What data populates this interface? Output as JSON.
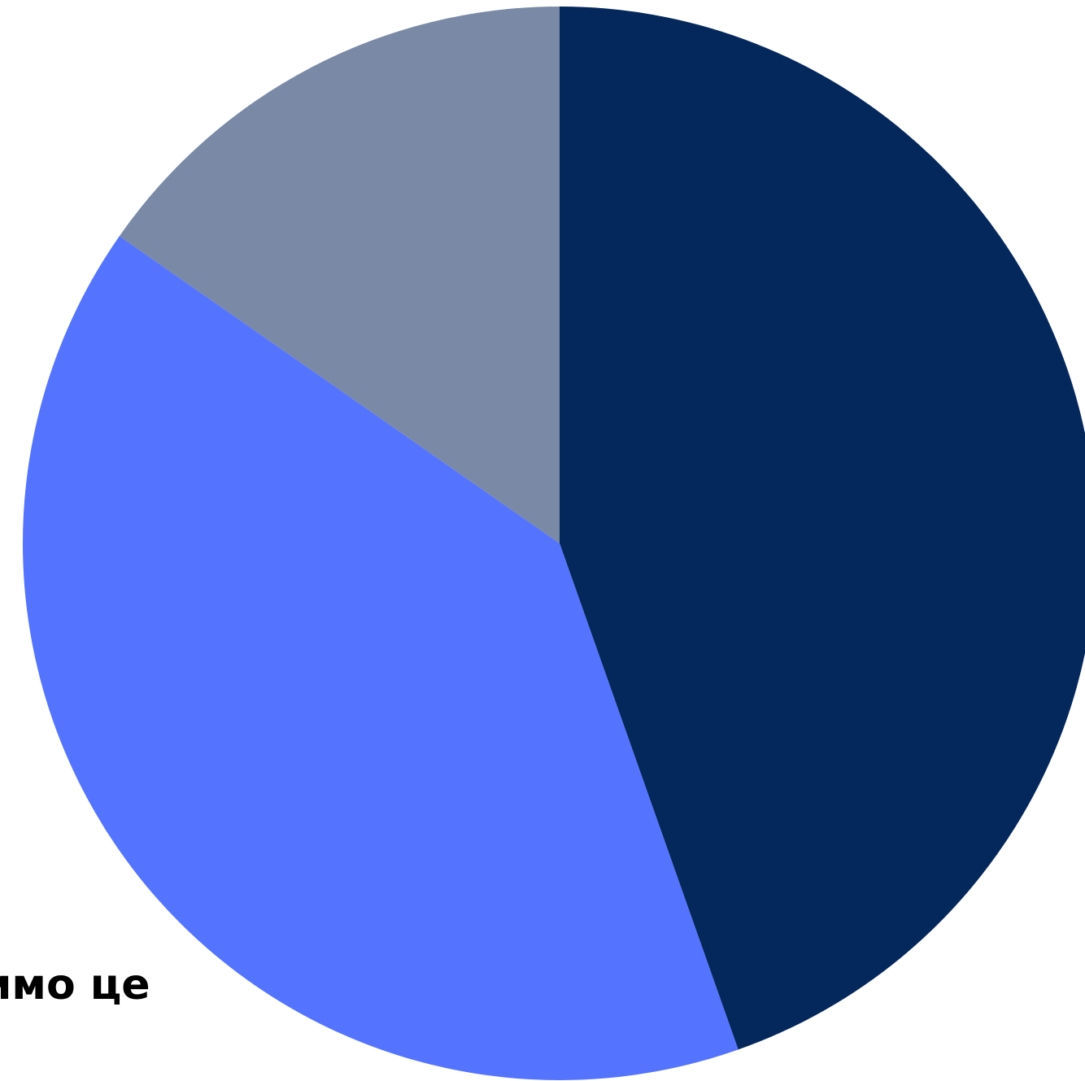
{
  "chart_data": {
    "type": "pie",
    "title": "",
    "slices": [
      {
        "label": "",
        "value": 44.6,
        "color": "#05285c"
      },
      {
        "label": "",
        "value": 40.1,
        "color": "#5473ff"
      },
      {
        "label": "",
        "value": 15.3,
        "color": "#7a8aa6"
      }
    ],
    "annotations": [
      "имо це"
    ],
    "start_angle_deg": 0,
    "direction": "clockwise"
  }
}
